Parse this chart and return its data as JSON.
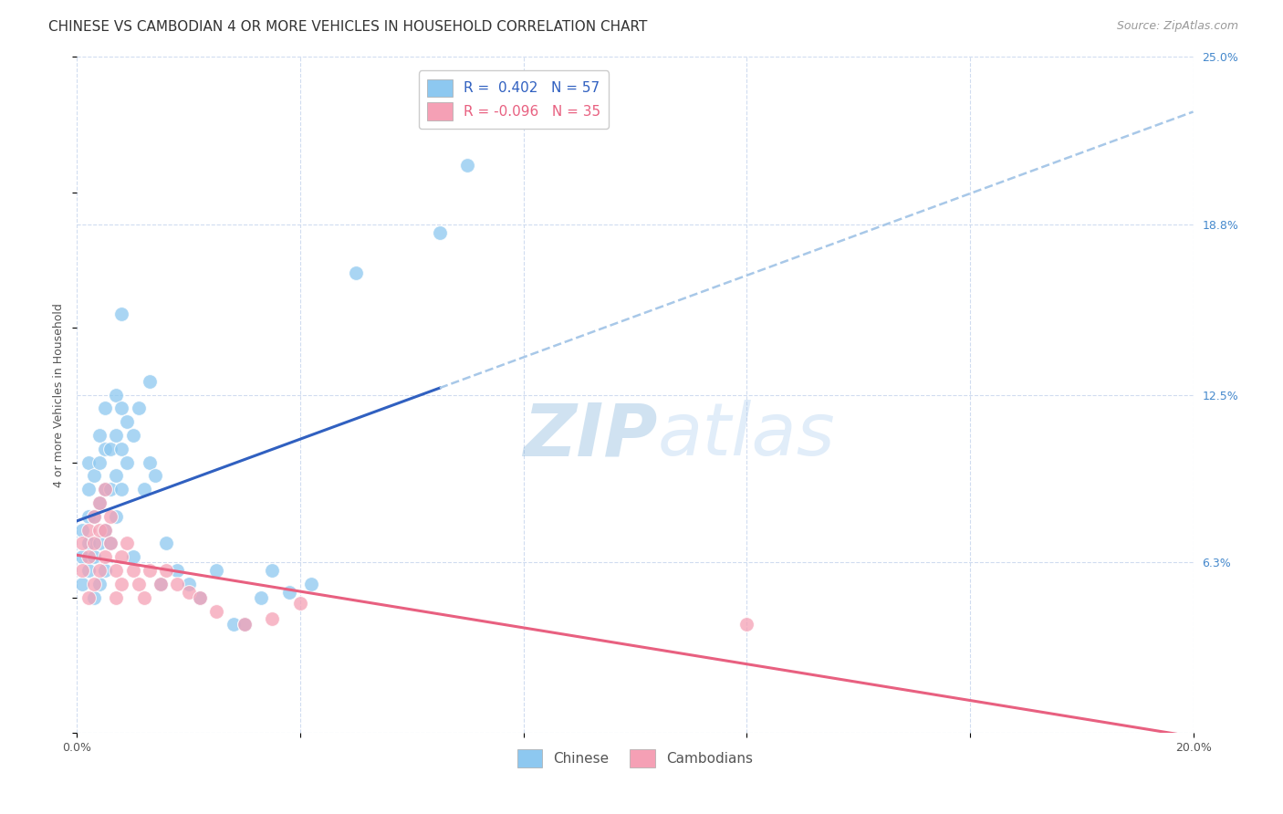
{
  "title": "CHINESE VS CAMBODIAN 4 OR MORE VEHICLES IN HOUSEHOLD CORRELATION CHART",
  "source": "Source: ZipAtlas.com",
  "ylabel": "4 or more Vehicles in Household",
  "watermark_zip": "ZIP",
  "watermark_atlas": "atlas",
  "xlim": [
    0.0,
    0.2
  ],
  "ylim": [
    0.0,
    0.25
  ],
  "xticks": [
    0.0,
    0.04,
    0.08,
    0.12,
    0.16,
    0.2
  ],
  "xticklabels": [
    "0.0%",
    "",
    "",
    "",
    "",
    "20.0%"
  ],
  "yticks_right": [
    0.0,
    0.063,
    0.125,
    0.188,
    0.25
  ],
  "yticklabels_right": [
    "",
    "6.3%",
    "12.5%",
    "18.8%",
    "25.0%"
  ],
  "chinese_color": "#8DC8F0",
  "cambodian_color": "#F5A0B5",
  "chinese_line_color": "#3060C0",
  "cambodian_line_color": "#E86080",
  "dashed_line_color": "#A8C8E8",
  "legend_chinese_r": " 0.402",
  "legend_chinese_n": "57",
  "legend_cambodian_r": "-0.096",
  "legend_cambodian_n": "35",
  "chinese_x": [
    0.001,
    0.001,
    0.001,
    0.002,
    0.002,
    0.002,
    0.002,
    0.002,
    0.003,
    0.003,
    0.003,
    0.003,
    0.004,
    0.004,
    0.004,
    0.004,
    0.004,
    0.005,
    0.005,
    0.005,
    0.005,
    0.005,
    0.006,
    0.006,
    0.006,
    0.007,
    0.007,
    0.007,
    0.007,
    0.008,
    0.008,
    0.008,
    0.009,
    0.009,
    0.01,
    0.01,
    0.011,
    0.012,
    0.013,
    0.013,
    0.014,
    0.015,
    0.016,
    0.018,
    0.02,
    0.022,
    0.025,
    0.028,
    0.03,
    0.033,
    0.035,
    0.038,
    0.042,
    0.05,
    0.065,
    0.07,
    0.008
  ],
  "chinese_y": [
    0.055,
    0.065,
    0.075,
    0.06,
    0.07,
    0.08,
    0.09,
    0.1,
    0.05,
    0.065,
    0.08,
    0.095,
    0.055,
    0.07,
    0.085,
    0.1,
    0.11,
    0.06,
    0.075,
    0.09,
    0.105,
    0.12,
    0.07,
    0.09,
    0.105,
    0.08,
    0.095,
    0.11,
    0.125,
    0.09,
    0.105,
    0.12,
    0.1,
    0.115,
    0.065,
    0.11,
    0.12,
    0.09,
    0.1,
    0.13,
    0.095,
    0.055,
    0.07,
    0.06,
    0.055,
    0.05,
    0.06,
    0.04,
    0.04,
    0.05,
    0.06,
    0.052,
    0.055,
    0.17,
    0.185,
    0.21,
    0.155
  ],
  "cambodian_x": [
    0.001,
    0.001,
    0.002,
    0.002,
    0.002,
    0.003,
    0.003,
    0.003,
    0.004,
    0.004,
    0.004,
    0.005,
    0.005,
    0.005,
    0.006,
    0.006,
    0.007,
    0.007,
    0.008,
    0.008,
    0.009,
    0.01,
    0.011,
    0.012,
    0.013,
    0.015,
    0.016,
    0.018,
    0.02,
    0.022,
    0.025,
    0.03,
    0.035,
    0.04,
    0.12
  ],
  "cambodian_y": [
    0.06,
    0.07,
    0.05,
    0.065,
    0.075,
    0.055,
    0.07,
    0.08,
    0.06,
    0.075,
    0.085,
    0.065,
    0.075,
    0.09,
    0.07,
    0.08,
    0.05,
    0.06,
    0.055,
    0.065,
    0.07,
    0.06,
    0.055,
    0.05,
    0.06,
    0.055,
    0.06,
    0.055,
    0.052,
    0.05,
    0.045,
    0.04,
    0.042,
    0.048,
    0.04
  ],
  "background_color": "#FFFFFF",
  "grid_color": "#D0DCF0",
  "title_fontsize": 11,
  "source_fontsize": 9,
  "ylabel_fontsize": 9,
  "tick_fontsize": 9,
  "legend_fontsize": 11
}
